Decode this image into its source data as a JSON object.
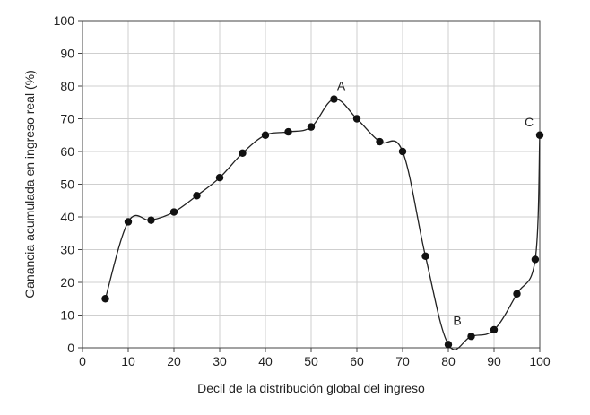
{
  "chart_data": {
    "type": "line",
    "title": "",
    "xlabel": "Decil de la distribución global del ingreso",
    "ylabel": "Ganancia acumulada en ingreso real (%)",
    "xlim": [
      0,
      100
    ],
    "ylim": [
      0,
      100
    ],
    "xticks": [
      "0",
      "10",
      "20",
      "30",
      "40",
      "50",
      "60",
      "70",
      "80",
      "90",
      "100"
    ],
    "yticks": [
      "0",
      "10",
      "20",
      "30",
      "40",
      "50",
      "60",
      "70",
      "80",
      "90",
      "100"
    ],
    "grid": true,
    "series": [
      {
        "x": [
          5,
          10,
          15,
          20,
          25,
          30,
          35,
          40,
          45,
          50,
          55,
          60,
          65,
          70,
          75,
          80,
          85,
          90,
          95,
          99,
          100
        ],
        "y": [
          15,
          38.5,
          39,
          41.5,
          46.5,
          52,
          59.5,
          65,
          66,
          67.5,
          76,
          70,
          63,
          60,
          28,
          1,
          3.5,
          5.5,
          16.5,
          27,
          65
        ]
      }
    ],
    "annotations": [
      {
        "text": "A",
        "x": 55,
        "y": 76
      },
      {
        "text": "B",
        "x": 80,
        "y": 1
      },
      {
        "text": "C",
        "x": 100,
        "y": 65
      }
    ]
  }
}
